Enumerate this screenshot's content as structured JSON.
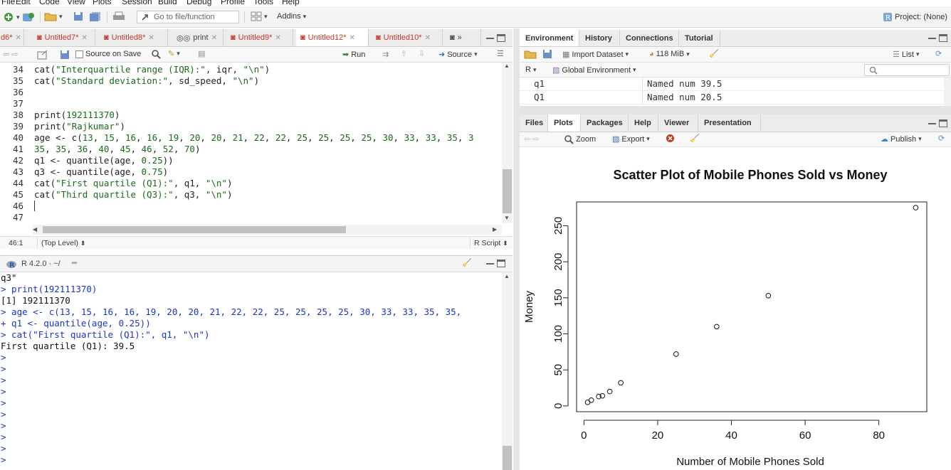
{
  "menu": [
    "File",
    "Edit",
    "Code",
    "View",
    "Plots",
    "Session",
    "Build",
    "Debug",
    "Profile",
    "Tools",
    "Help"
  ],
  "toolbar": {
    "goto_placeholder": "Go to file/function",
    "addins": "Addins",
    "project": "Project: (None)"
  },
  "editor_tabs": [
    {
      "label": "d6*"
    },
    {
      "label": "Untitled7*"
    },
    {
      "label": "Untitled8*"
    },
    {
      "label": "print"
    },
    {
      "label": "Untitled9*"
    },
    {
      "label": "Untitled12*"
    },
    {
      "label": "Untitled10*"
    }
  ],
  "editor_toolbar": {
    "source_on_save": "Source on Save",
    "run": "Run",
    "source": "Source"
  },
  "editor": {
    "lines": [
      {
        "n": "34",
        "text": "cat(\"Interquartile range (IQR):\", iqr, \"\\n\")"
      },
      {
        "n": "35",
        "text": "cat(\"Standard deviation:\", sd_speed, \"\\n\")"
      },
      {
        "n": "36",
        "text": ""
      },
      {
        "n": "37",
        "text": ""
      },
      {
        "n": "38",
        "text": "print(192111370)"
      },
      {
        "n": "39",
        "text": "print(\"Rajkumar\")"
      },
      {
        "n": "40",
        "text": "age <- c(13, 15, 16, 16, 19, 20, 20, 21, 22, 22, 25, 25, 25, 25, 30, 33, 33, 35, 3"
      },
      {
        "n": "41",
        "text": "35, 35, 36, 40, 45, 46, 52, 70)"
      },
      {
        "n": "42",
        "text": "q1 <- quantile(age, 0.25))"
      },
      {
        "n": "43",
        "text": "q3 <- quantile(age, 0.75)"
      },
      {
        "n": "44",
        "text": "cat(\"First quartile (Q1):\", q1, \"\\n\")"
      },
      {
        "n": "45",
        "text": "cat(\"Third quartile (Q3):\", q3, \"\\n\")"
      },
      {
        "n": "46",
        "text": ""
      },
      {
        "n": "47",
        "text": ""
      }
    ],
    "status": {
      "position": "46:1",
      "scope": "(Top Level)",
      "type": "R Script"
    }
  },
  "console": {
    "version": "R 4.2.0 · ~/",
    "lines": [
      {
        "kind": "out",
        "text": "q3\""
      },
      {
        "kind": "in",
        "text": "> print(192111370)"
      },
      {
        "kind": "out",
        "text": "[1] 192111370"
      },
      {
        "kind": "in",
        "text": "> age <- c(13, 15, 16, 16, 19, 20, 20, 21, 22, 22, 25, 25, 25, 25, 30, 33, 33, 35, 35,"
      },
      {
        "kind": "in",
        "text": "+ q1 <- quantile(age, 0.25))"
      },
      {
        "kind": "in",
        "text": "> cat(\"First quartile (Q1):\", q1, \"\\n\")"
      },
      {
        "kind": "out",
        "text": "First quartile (Q1): 39.5"
      },
      {
        "kind": "in",
        "text": ">"
      },
      {
        "kind": "in",
        "text": ">"
      },
      {
        "kind": "in",
        "text": ">"
      },
      {
        "kind": "in",
        "text": ">"
      },
      {
        "kind": "in",
        "text": ">"
      },
      {
        "kind": "in",
        "text": ">"
      },
      {
        "kind": "in",
        "text": ">"
      },
      {
        "kind": "in",
        "text": ">"
      },
      {
        "kind": "in",
        "text": ">"
      },
      {
        "kind": "in",
        "text": ">"
      }
    ]
  },
  "env_tabs": [
    "Environment",
    "History",
    "Connections",
    "Tutorial"
  ],
  "env_toolbar": {
    "import": "Import Dataset",
    "memory": "118 MiB",
    "list": "List",
    "r_label": "R",
    "scope": "Global Environment"
  },
  "env_rows": [
    {
      "name": "q1",
      "value": "Named num 39.5"
    },
    {
      "name": "Q1",
      "value": "Named num 20.5"
    }
  ],
  "files_tabs": [
    "Files",
    "Plots",
    "Packages",
    "Help",
    "Viewer",
    "Presentation"
  ],
  "plots_toolbar": {
    "zoom": "Zoom",
    "export": "Export",
    "publish": "Publish"
  },
  "chart_data": {
    "type": "scatter",
    "title": "Scatter Plot of Mobile Phones Sold vs Money",
    "xlabel": "Number of Mobile Phones Sold",
    "ylabel": "Money",
    "xlim": [
      0,
      90
    ],
    "ylim": [
      0,
      275
    ],
    "xticks": [
      0,
      20,
      40,
      60,
      80
    ],
    "yticks": [
      0,
      50,
      100,
      150,
      200,
      250
    ],
    "points": [
      {
        "x": 1,
        "y": 5
      },
      {
        "x": 2,
        "y": 8
      },
      {
        "x": 4,
        "y": 13
      },
      {
        "x": 5,
        "y": 14
      },
      {
        "x": 7,
        "y": 20
      },
      {
        "x": 10,
        "y": 32
      },
      {
        "x": 25,
        "y": 72
      },
      {
        "x": 36,
        "y": 110
      },
      {
        "x": 50,
        "y": 153
      },
      {
        "x": 90,
        "y": 275
      }
    ]
  }
}
